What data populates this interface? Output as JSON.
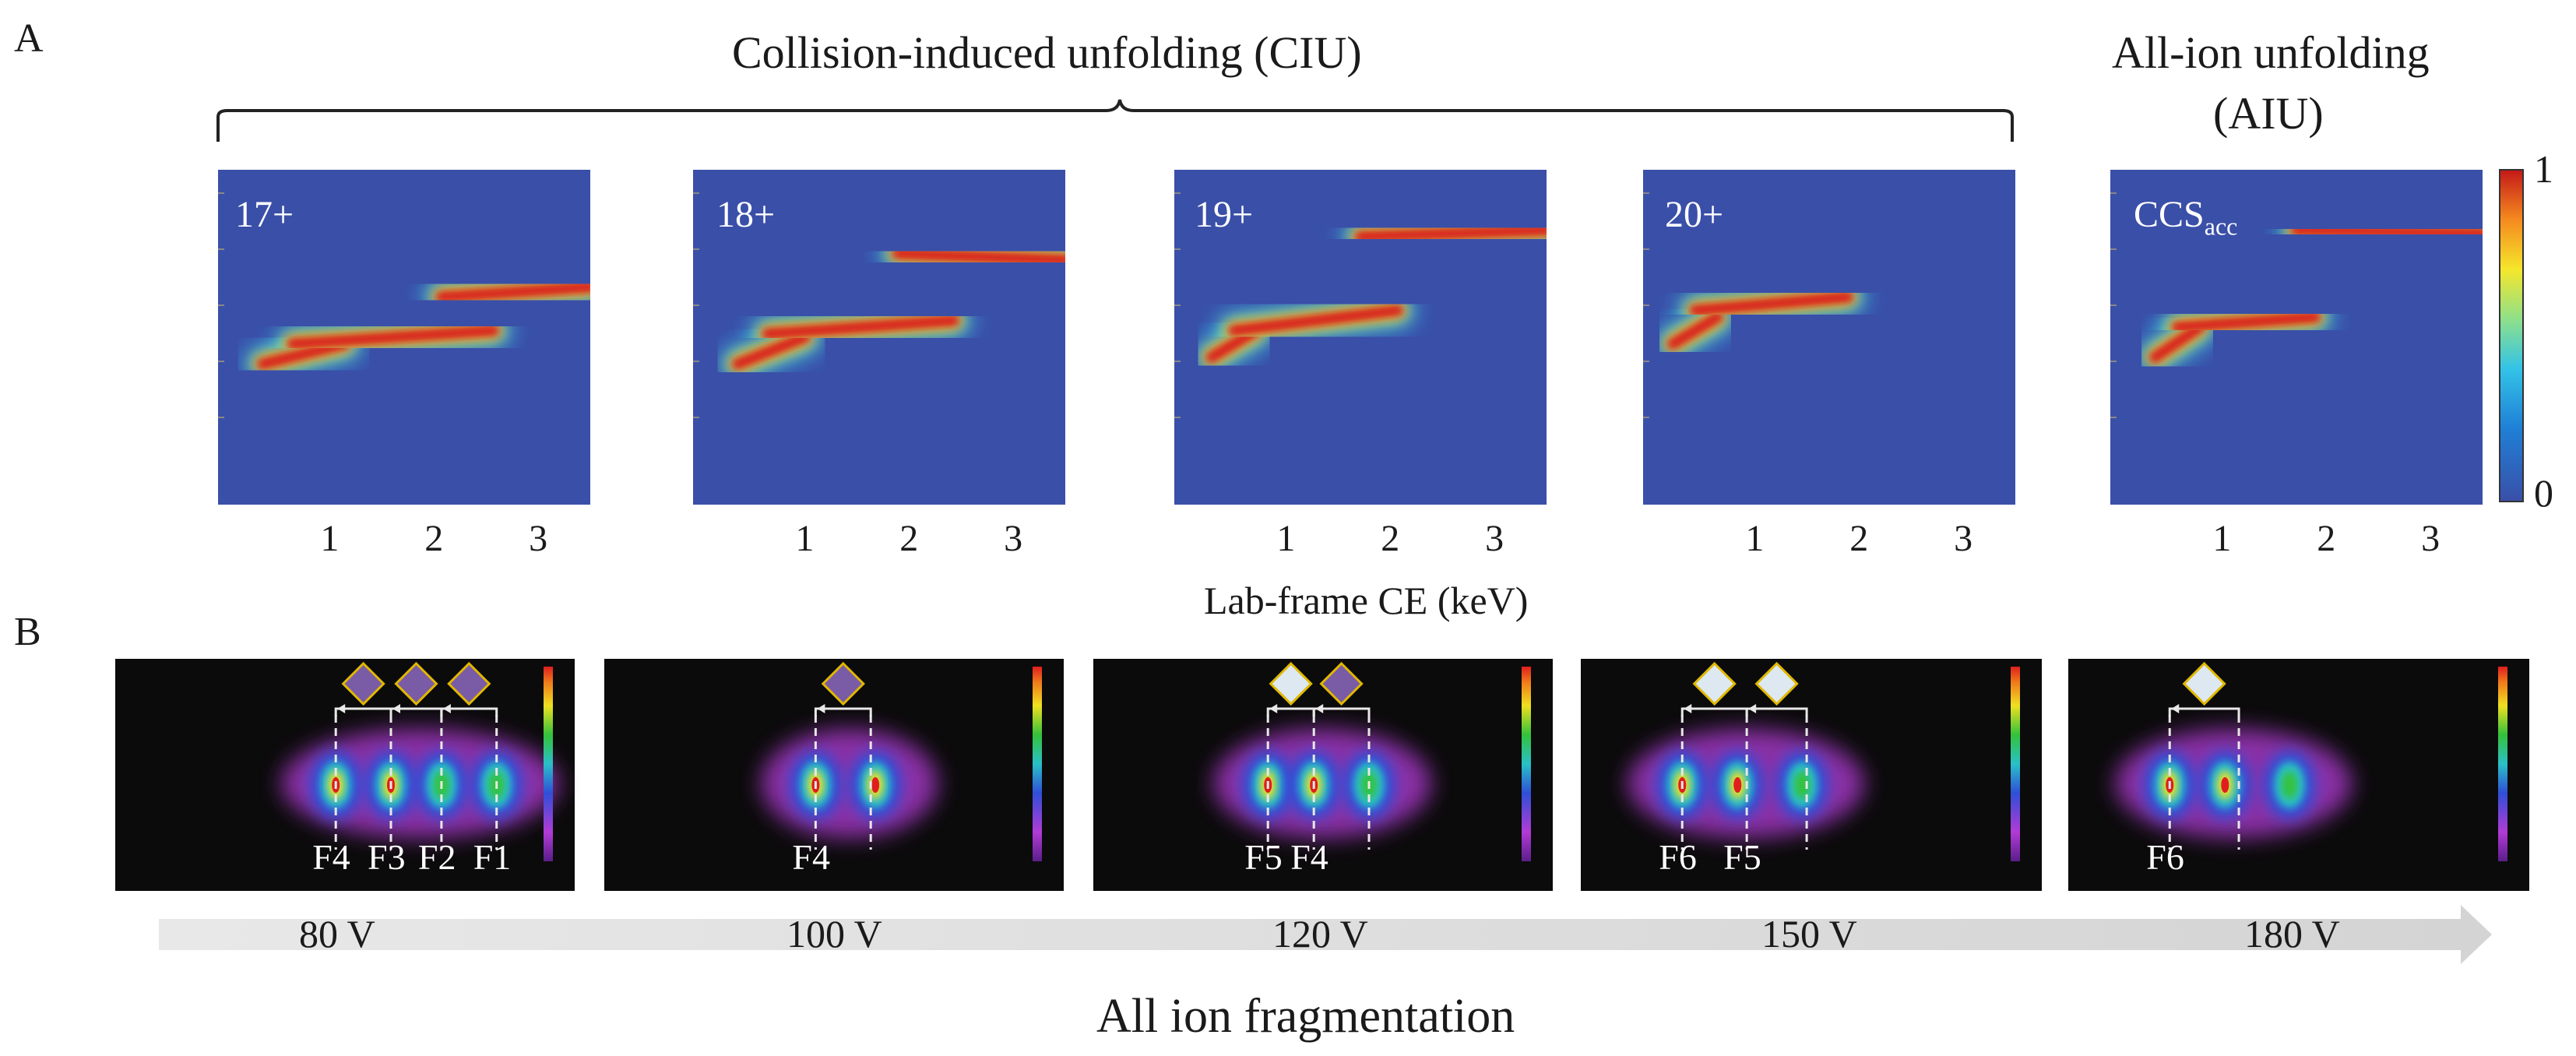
{
  "panel_a": {
    "letter": "A",
    "ciu_title": "Collision-induced unfolding (CIU)",
    "aiu_title_line1": "All-ion unfolding",
    "aiu_title_line2": "(AIU)",
    "xlabel": "Lab-frame CE (keV)",
    "tick_labels": [
      "1",
      "2",
      "3"
    ],
    "colorbar_max": "1",
    "colorbar_min": "0",
    "plots": [
      {
        "label": "17+"
      },
      {
        "label": "18+"
      },
      {
        "label": "19+"
      },
      {
        "label": "20+"
      },
      {
        "label": "CCS",
        "label_sub": "acc"
      }
    ],
    "colormap": [
      "#3a4fa8",
      "#1f7fd6",
      "#33c3e8",
      "#8fe08a",
      "#f5e62b",
      "#f58a1f",
      "#d81e1e",
      "#9e1414"
    ]
  },
  "panel_b": {
    "letter": "B",
    "bottom_title": "All ion fragmentation",
    "voltages": [
      "80 V",
      "100 V",
      "120 V",
      "150 V",
      "180 V"
    ],
    "panels": [
      {
        "voltage": "80 V",
        "fragments": [
          "F4",
          "F3",
          "F2",
          "F1"
        ],
        "diamonds": [
          "purple",
          "purple",
          "purple"
        ]
      },
      {
        "voltage": "100 V",
        "fragments": [
          "F4"
        ],
        "diamonds": [
          "purple"
        ]
      },
      {
        "voltage": "120 V",
        "fragments": [
          "F5",
          "F4"
        ],
        "diamonds": [
          "white",
          "purple"
        ]
      },
      {
        "voltage": "150 V",
        "fragments": [
          "F6",
          "F5"
        ],
        "diamonds": [
          "white",
          "white"
        ]
      },
      {
        "voltage": "180 V",
        "fragments": [
          "F6"
        ],
        "diamonds": [
          "white"
        ]
      }
    ],
    "diamond_colors": {
      "purple": "#7a5ba6",
      "white": "#dde8f0",
      "border": "#e0b800"
    }
  }
}
